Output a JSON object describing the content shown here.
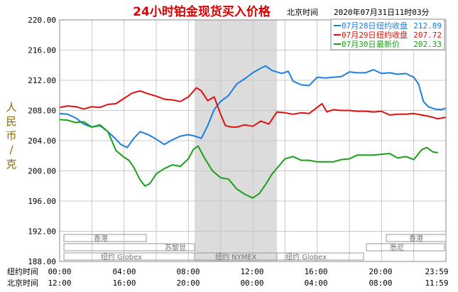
{
  "chart_data": {
    "type": "line",
    "title": "24小时铂金现货买入价格",
    "header_location": "北京时间",
    "header_datetime": "2020年07月31日11时03分",
    "ylabel": "人民币/克",
    "ylim": [
      188,
      220
    ],
    "y_ticks": [
      "220.00",
      "216.00",
      "212.00",
      "208.00",
      "204.00",
      "200.00",
      "196.00",
      "192.00",
      "188.00"
    ],
    "x_row_ny_label": "纽约时间",
    "x_ticks_ny": [
      "00:00",
      "04:00",
      "08:00",
      "12:00",
      "16:00",
      "20:00",
      "23:59"
    ],
    "x_row_bj_label": "北京时间",
    "x_ticks_bj": [
      "12:00",
      "16:00",
      "20:00",
      "00:00",
      "04:00",
      "08:00",
      "11:59"
    ],
    "grid": true,
    "legend_position": "top-right",
    "markets": [
      "香港",
      "苏黎世",
      "纽约 Globex",
      "纽约 NYMEX",
      "纽约 Globex",
      "悉尼",
      "香港"
    ],
    "colors": {
      "blue": "#1a7fe0",
      "red": "#e01010",
      "green": "#18a018",
      "title": "#dd0000",
      "shade": "#dcdcdc"
    },
    "series": [
      {
        "name": "07月28日",
        "legend_kind": "纽约收盘",
        "legend_value": "212.89",
        "color": "#1a7fe0",
        "points": [
          [
            0,
            207.6
          ],
          [
            0.5,
            207.5
          ],
          [
            1,
            207
          ],
          [
            1.5,
            206.2
          ],
          [
            2,
            205.8
          ],
          [
            2.5,
            206
          ],
          [
            3,
            205.2
          ],
          [
            3.5,
            204.2
          ],
          [
            3.8,
            203.5
          ],
          [
            4.2,
            203.1
          ],
          [
            4.6,
            204.3
          ],
          [
            5,
            205.2
          ],
          [
            5.5,
            204.8
          ],
          [
            6,
            204.2
          ],
          [
            6.5,
            203.5
          ],
          [
            7,
            204.1
          ],
          [
            7.5,
            204.6
          ],
          [
            8,
            204.8
          ],
          [
            8.4,
            204.6
          ],
          [
            8.8,
            204.3
          ],
          [
            9.2,
            206
          ],
          [
            9.6,
            208.1
          ],
          [
            10,
            209.2
          ],
          [
            10.5,
            210
          ],
          [
            11,
            211.5
          ],
          [
            11.5,
            212.2
          ],
          [
            12,
            213
          ],
          [
            12.5,
            213.6
          ],
          [
            12.8,
            213.9
          ],
          [
            13.2,
            213.3
          ],
          [
            13.8,
            212.9
          ],
          [
            14.2,
            213.2
          ],
          [
            14.5,
            211.9
          ],
          [
            15,
            211.4
          ],
          [
            15.5,
            211.3
          ],
          [
            16,
            212.4
          ],
          [
            16.5,
            212.3
          ],
          [
            17,
            212.4
          ],
          [
            17.5,
            212.5
          ],
          [
            18,
            213.1
          ],
          [
            18.5,
            213
          ],
          [
            19,
            213
          ],
          [
            19.5,
            213.4
          ],
          [
            20,
            212.9
          ],
          [
            20.5,
            213
          ],
          [
            21,
            212.8
          ],
          [
            21.5,
            212.9
          ],
          [
            22,
            212.4
          ],
          [
            22.3,
            211.5
          ],
          [
            22.6,
            209.2
          ],
          [
            22.9,
            208.5
          ],
          [
            23.3,
            208.2
          ],
          [
            23.7,
            208.1
          ],
          [
            23.98,
            208.3
          ]
        ]
      },
      {
        "name": "07月29日",
        "legend_kind": "纽约收盘",
        "legend_value": "207.72",
        "color": "#e01010",
        "points": [
          [
            0,
            208.4
          ],
          [
            0.5,
            208.6
          ],
          [
            1,
            208.5
          ],
          [
            1.5,
            208.2
          ],
          [
            2,
            208.5
          ],
          [
            2.5,
            208.4
          ],
          [
            3,
            208.8
          ],
          [
            3.5,
            208.9
          ],
          [
            4,
            209.6
          ],
          [
            4.5,
            210.3
          ],
          [
            5,
            210.6
          ],
          [
            5.5,
            210.2
          ],
          [
            6,
            209.9
          ],
          [
            6.5,
            209.5
          ],
          [
            7,
            209.4
          ],
          [
            7.5,
            209.2
          ],
          [
            8,
            209.8
          ],
          [
            8.5,
            211
          ],
          [
            8.8,
            210.6
          ],
          [
            9.2,
            209.3
          ],
          [
            9.6,
            209.8
          ],
          [
            10,
            207.5
          ],
          [
            10.3,
            206
          ],
          [
            10.7,
            205.8
          ],
          [
            11,
            205.8
          ],
          [
            11.5,
            206.1
          ],
          [
            12,
            205.9
          ],
          [
            12.5,
            206.6
          ],
          [
            13,
            206.2
          ],
          [
            13.5,
            207.8
          ],
          [
            14,
            207.7
          ],
          [
            14.5,
            207.5
          ],
          [
            15,
            207.7
          ],
          [
            15.5,
            207.6
          ],
          [
            16,
            208.4
          ],
          [
            16.3,
            208.9
          ],
          [
            16.6,
            207.8
          ],
          [
            17,
            208.1
          ],
          [
            17.5,
            208
          ],
          [
            18,
            208
          ],
          [
            18.5,
            207.9
          ],
          [
            19,
            207.9
          ],
          [
            19.5,
            207.8
          ],
          [
            20,
            207.9
          ],
          [
            20.5,
            207.4
          ],
          [
            21,
            207.5
          ],
          [
            21.5,
            207.5
          ],
          [
            22,
            207.6
          ],
          [
            22.5,
            207.4
          ],
          [
            23,
            207.2
          ],
          [
            23.5,
            206.9
          ],
          [
            23.98,
            207.1
          ]
        ]
      },
      {
        "name": "07月30日",
        "legend_kind": "最新价",
        "legend_value": "202.33",
        "color": "#18a018",
        "points": [
          [
            0,
            206.8
          ],
          [
            0.5,
            206.7
          ],
          [
            1,
            206.4
          ],
          [
            1.5,
            206.5
          ],
          [
            2,
            205.8
          ],
          [
            2.5,
            206.1
          ],
          [
            3,
            205.2
          ],
          [
            3.5,
            202.7
          ],
          [
            4,
            201.8
          ],
          [
            4.3,
            201.4
          ],
          [
            4.6,
            200.5
          ],
          [
            5,
            198.8
          ],
          [
            5.3,
            198
          ],
          [
            5.6,
            198.3
          ],
          [
            6,
            199.6
          ],
          [
            6.5,
            200.3
          ],
          [
            7,
            200.8
          ],
          [
            7.5,
            200.6
          ],
          [
            8,
            201.6
          ],
          [
            8.3,
            202.8
          ],
          [
            8.6,
            203.3
          ],
          [
            9,
            201.7
          ],
          [
            9.5,
            200
          ],
          [
            10,
            199.1
          ],
          [
            10.5,
            198.9
          ],
          [
            11,
            197.6
          ],
          [
            11.5,
            196.9
          ],
          [
            12,
            196.4
          ],
          [
            12.4,
            197
          ],
          [
            12.8,
            198.2
          ],
          [
            13.2,
            199.6
          ],
          [
            13.6,
            200.6
          ],
          [
            14,
            201.6
          ],
          [
            14.5,
            201.9
          ],
          [
            15,
            201.4
          ],
          [
            15.5,
            201.4
          ],
          [
            16,
            201.2
          ],
          [
            16.5,
            201.2
          ],
          [
            17,
            201.2
          ],
          [
            17.5,
            201.5
          ],
          [
            18,
            201.6
          ],
          [
            18.5,
            202.1
          ],
          [
            19,
            202.1
          ],
          [
            19.5,
            202.1
          ],
          [
            20,
            202.2
          ],
          [
            20.5,
            202.3
          ],
          [
            21,
            201.7
          ],
          [
            21.5,
            201.9
          ],
          [
            22,
            201.5
          ],
          [
            22.5,
            202.8
          ],
          [
            22.8,
            203.1
          ],
          [
            23.2,
            202.5
          ],
          [
            23.5,
            202.4
          ]
        ]
      }
    ]
  }
}
